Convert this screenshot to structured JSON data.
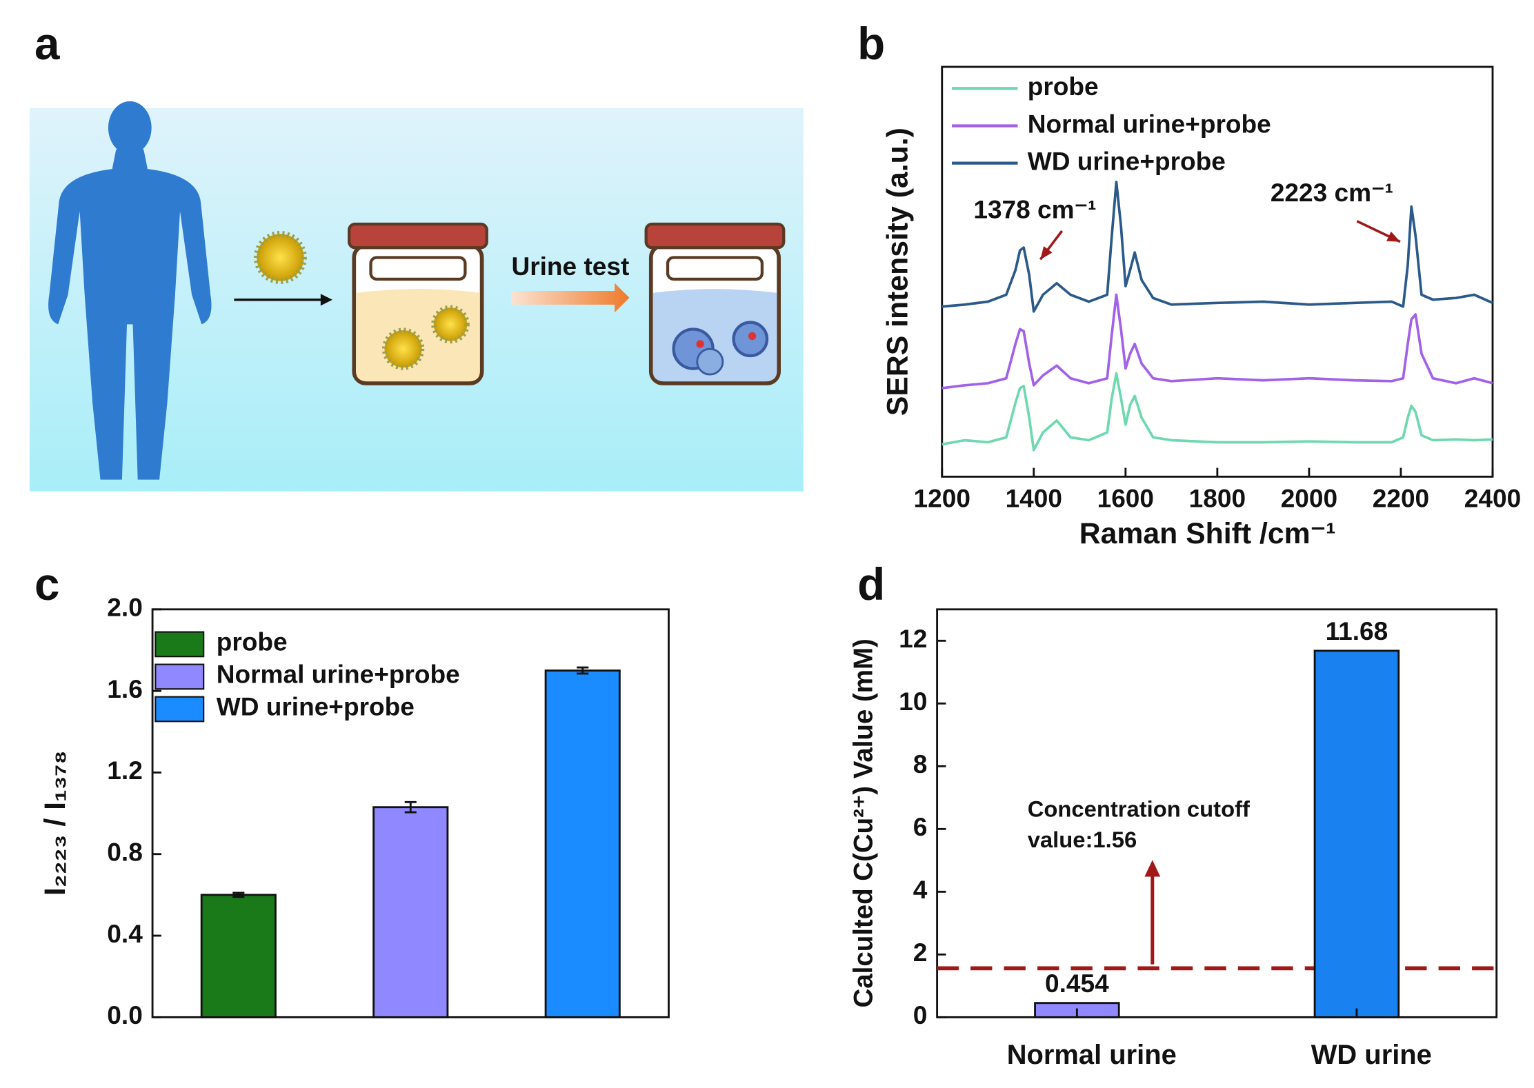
{
  "diagram": {
    "label": "a",
    "arrow_label": "Urine test"
  },
  "chart_data": [
    {
      "type": "line",
      "label": "b",
      "xlabel": "Raman Shift /cm⁻¹",
      "ylabel": "SERS intensity (a.u.)",
      "xlim": [
        1200,
        2400
      ],
      "xticks": [
        1200,
        1400,
        1600,
        1800,
        2000,
        2200,
        2400
      ],
      "ylim": [
        0,
        100
      ],
      "annotations": [
        "1378 cm⁻¹",
        "2223 cm⁻¹"
      ],
      "x": [
        1200,
        1250,
        1300,
        1340,
        1360,
        1370,
        1378,
        1390,
        1400,
        1420,
        1450,
        1480,
        1520,
        1560,
        1570,
        1580,
        1590,
        1600,
        1610,
        1620,
        1635,
        1660,
        1700,
        1800,
        1900,
        2000,
        2100,
        2180,
        2205,
        2215,
        2223,
        2232,
        2245,
        2270,
        2320,
        2360,
        2400
      ],
      "series": [
        {
          "name": "probe",
          "color": "#6fd8b0",
          "values": [
            7.9,
            8.9,
            8.4,
            9.6,
            18,
            21.6,
            22.1,
            14.4,
            6.5,
            10.8,
            13.7,
            9.6,
            8.9,
            10.8,
            19.2,
            25.2,
            19.2,
            12.7,
            17.5,
            19.7,
            14.4,
            9.6,
            8.9,
            8.4,
            8.4,
            8.6,
            8.4,
            8.4,
            9.6,
            14.4,
            17.3,
            15.8,
            10.1,
            8.9,
            9.1,
            8.9,
            9.1
          ]
        },
        {
          "name": "Normal urine+probe",
          "color": "#a162e8",
          "values": [
            21.6,
            22.3,
            22.8,
            24,
            32.4,
            36,
            35.5,
            27.6,
            22.3,
            24.7,
            27.1,
            24,
            22.8,
            24,
            34.8,
            44.4,
            36,
            26.4,
            30,
            32.4,
            27.6,
            24,
            23.3,
            24,
            23.5,
            24,
            23.5,
            23.3,
            24,
            32.4,
            38.4,
            39.6,
            30,
            24,
            22.8,
            24,
            22.8
          ]
        },
        {
          "name": "WD urine+probe",
          "color": "#2b5a8a",
          "values": [
            41.5,
            42,
            42.7,
            44.4,
            50.4,
            55.2,
            55.9,
            49.2,
            40.3,
            44.4,
            47.2,
            44.4,
            42.7,
            44.4,
            58.8,
            71.9,
            61.2,
            46.5,
            50.4,
            54.7,
            48,
            43.6,
            42,
            42.4,
            42.7,
            42,
            42.4,
            42.7,
            41.5,
            51.6,
            65.9,
            58.8,
            44.4,
            43.2,
            43.6,
            44.4,
            42.4
          ]
        }
      ]
    },
    {
      "type": "bar",
      "label": "c",
      "ylabel": "I₂₂₂₃ / I₁₃₇₈",
      "categories": [
        "probe",
        "Normal urine+probe",
        "WD urine+probe"
      ],
      "colors": [
        "#1a7a1a",
        "#8f88ff",
        "#1a8cff"
      ],
      "values": [
        0.6,
        1.03,
        1.7
      ],
      "errors": [
        0.01,
        0.025,
        0.015
      ],
      "ylim": [
        0,
        2.0
      ],
      "yticks": [
        {
          "value": 0,
          "label": "0.0"
        },
        0.4,
        0.8,
        1.2,
        1.6,
        {
          "value": 2,
          "label": "2.0"
        }
      ]
    },
    {
      "type": "bar",
      "label": "d",
      "ylabel": "Calculted C(Cu²⁺) Value (mM)",
      "categories": [
        "Normal urine",
        "WD urine"
      ],
      "colors": [
        "#8f88ff",
        "#1a82f0"
      ],
      "values": [
        0.454,
        11.68
      ],
      "show_values": true,
      "cutoff": 1.56,
      "cutoff_color": "#a01818",
      "annotations": [
        "Concentration cutoff",
        "value:1.56"
      ],
      "ylim": [
        0,
        13
      ],
      "yticks": [
        0,
        2,
        4,
        6,
        8,
        10,
        12
      ]
    }
  ]
}
